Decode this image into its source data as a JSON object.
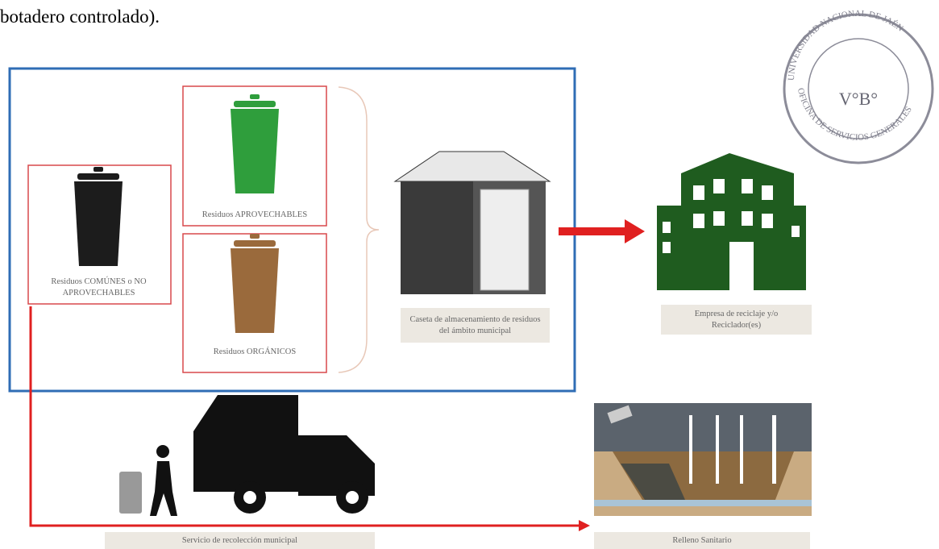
{
  "heading": "botadero controlado).",
  "boxes": {
    "comunes": "Residuos COMÚNES o NO APROVECHABLES",
    "aprovechables": "Residuos APROVECHABLES",
    "organicos": "Residuos ORGÁNICOS"
  },
  "caseta": "Caseta de almacenamiento de residuos del ámbito municipal",
  "empresa": "Empresa de reciclaje y/o Reciclador(es)",
  "servicio": "Servicio de recolección municipal",
  "relleno": "Relleno Sanitario",
  "stamp": {
    "top": "UNIVERSIDAD NACIONAL DE JAÉN",
    "bottom": "OFICINA DE SERVICIOS GENERALES",
    "mark": "V°B°"
  }
}
